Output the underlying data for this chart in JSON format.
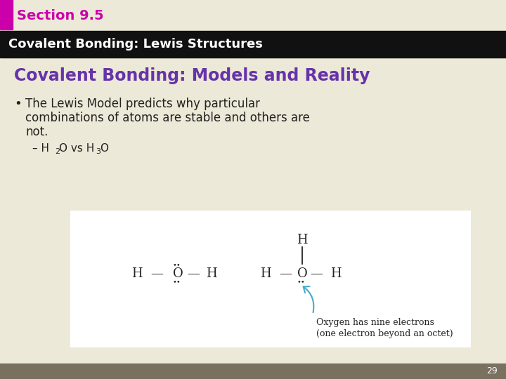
{
  "section_label": "Section 9.5",
  "section_label_color": "#cc00aa",
  "header_bar_text": "Covalent Bonding: Lewis Structures",
  "header_bar_color": "#111111",
  "header_text_color": "#ffffff",
  "slide_title": "Covalent Bonding: Models and Reality",
  "slide_title_color": "#6633aa",
  "bullet_line1": "The Lewis Model predicts why particular",
  "bullet_line2": "combinations of atoms are stable and others are",
  "bullet_line3": "not.",
  "sub_bullet_prefix": "– H",
  "sub_bullet_2": "O vs H",
  "sub_bullet_3": "O",
  "bg_color": "#ede9d8",
  "diagram_bg": "#ffffff",
  "arrow_color": "#44aacc",
  "annot1": "Oxygen has nine electrons",
  "annot2": "(one electron beyond an octet)",
  "footer_bar_color": "#7a7060",
  "page_number": "29",
  "accent_color": "#cc00aa",
  "text_color": "#222222"
}
